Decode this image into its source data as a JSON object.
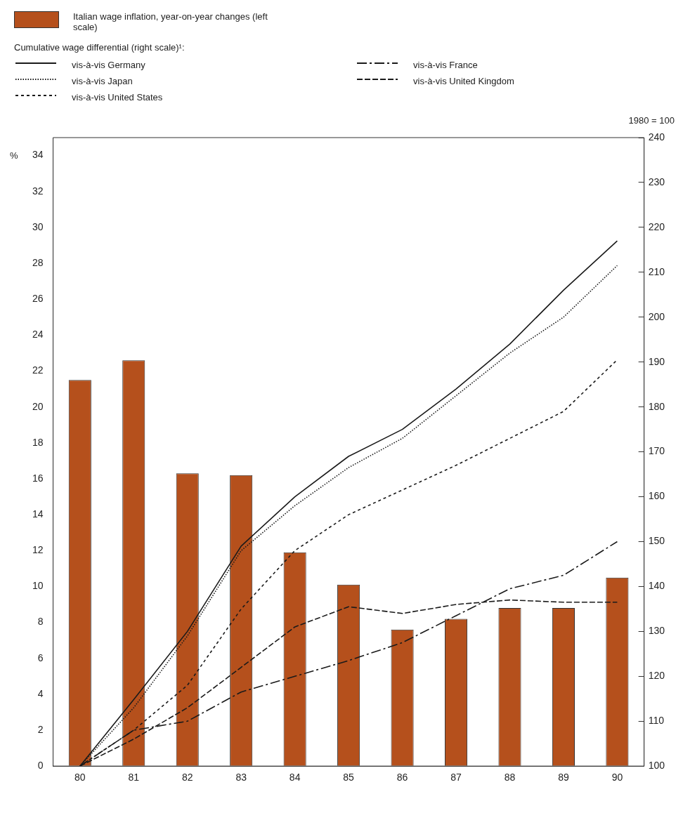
{
  "chart_data": {
    "type": "bar",
    "categories": [
      "80",
      "81",
      "82",
      "83",
      "84",
      "85",
      "86",
      "87",
      "88",
      "89",
      "90"
    ],
    "ylabel": "%",
    "y2label": "1980 = 100",
    "legend_title": "Cumulative wage differential (right scale)¹:",
    "legend": "top",
    "ylim": [
      0,
      35
    ],
    "yticks": [
      0,
      2,
      4,
      6,
      8,
      10,
      12,
      14,
      16,
      18,
      20,
      22,
      24,
      26,
      28,
      30,
      32,
      34
    ],
    "y2lim": [
      100,
      240
    ],
    "y2ticks": [
      100,
      110,
      120,
      130,
      140,
      150,
      160,
      170,
      180,
      190,
      200,
      210,
      220,
      230,
      240
    ],
    "grid": false,
    "series": [
      {
        "name": "Italian wage inflation, year-on-year changes (left scale)",
        "color": "#b5501c",
        "values": [
          21.5,
          22.6,
          16.3,
          16.2,
          11.9,
          10.1,
          7.6,
          8.2,
          8.8,
          8.8,
          10.5
        ]
      },
      {
        "name": "vis-à-vis Germany",
        "type": "line",
        "axis": "y2",
        "color": "#1a1a1a",
        "line_style": "solid",
        "values": [
          100,
          114.8,
          130,
          149,
          160,
          169,
          175,
          184,
          194,
          206,
          217
        ]
      },
      {
        "name": "vis-à-vis Japan",
        "type": "line",
        "axis": "y2",
        "color": "#1a1a1a",
        "line_style": "dotted",
        "values": [
          100,
          113,
          129,
          148,
          158,
          166.5,
          173,
          182.5,
          192,
          200,
          211.5
        ]
      },
      {
        "name": "vis-à-vis United States",
        "type": "line",
        "axis": "y2",
        "color": "#1a1a1a",
        "line_style": "dashed",
        "values": [
          100,
          108,
          118,
          135,
          148,
          156,
          161.5,
          167,
          173,
          179,
          190.5
        ]
      },
      {
        "name": "vis-à-vis France",
        "type": "line",
        "axis": "y2",
        "color": "#1a1a1a",
        "line_style": "dashdot",
        "values": [
          100,
          108,
          110,
          116.5,
          120,
          123.5,
          127.5,
          133.5,
          139.5,
          142.5,
          150
        ]
      },
      {
        "name": "vis-à-vis United Kingdom",
        "type": "line",
        "axis": "y2",
        "color": "#1a1a1a",
        "line_style": "longdash",
        "values": [
          100,
          106,
          113,
          122,
          131,
          135.5,
          134,
          136,
          137,
          136.5,
          136.5
        ]
      }
    ]
  }
}
